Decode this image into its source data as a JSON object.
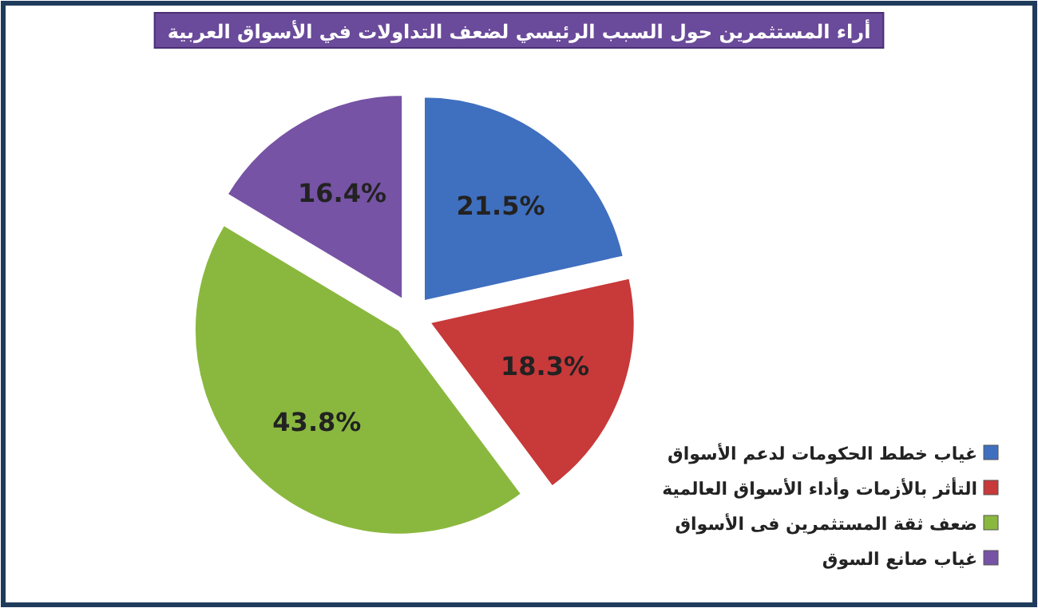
{
  "chart_data": {
    "type": "pie",
    "title": "أراء المستثمرين حول السبب الرئيسي لضعف التداولات في الأسواق العربية",
    "categories": [
      "غياب خطط الحكومات لدعم الأسواق",
      "التأثر بالأزمات وأداء الأسواق العالمية",
      "ضعف ثقة المستثمرين فى الأسواق",
      "غياب صانع السوق"
    ],
    "values": [
      21.5,
      18.3,
      43.8,
      16.4
    ],
    "colors": [
      "#3f6fbf",
      "#c8393a",
      "#8ab83f",
      "#7653a4"
    ],
    "value_labels": [
      "21.5%",
      "18.3%",
      "43.8%",
      "16.4%"
    ],
    "legend": "bottom right"
  }
}
